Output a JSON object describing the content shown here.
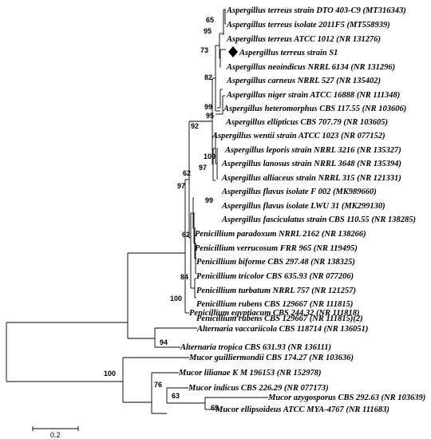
{
  "tree": {
    "taxa": [
      "Aspergillus terreus strain DTO 403-C9 (MT316343)",
      "Aspergillus terreus isolate 2011F5 (MT558939)",
      "Aspergillus terreus ATCC 1012 (NR 131276)",
      "Aspergillus terreus strain S1",
      "Aspergillus neoindicus NRRL 6134 (NR 131296)",
      "Aspergillus carneus NRRL 527 (NR 135402)",
      "Aspergillus niger strain ATCC 16888 (NR 111348)",
      "Aspergillus heteromorphus CBS 117.55 (NR 103606)",
      "Aspergillus ellipticus CBS 707.79 (NR 103605)",
      "Aspergillus wentii strain ATCC 1023 (NR 077152)",
      "Aspergillus leporis strain NRRL 3216 (NR 135327)",
      "Aspergillus lanosus strain NRRL 3648 (NR 135394)",
      "Aspergillus alliaceus strain NRRL 315 (NR 121331)",
      "Aspergillus flavus isolate F 002 (MK989660)",
      "Aspergillus flavus isolate LWU 31 (MK299130)",
      "Aspergillus fasciculatus strain CBS 110.55 (NR 138285)",
      "Penicillium paradoxum NRRL 2162 (NR 138266)",
      "Penicillium verrucosum FRR 965 (NR 119495)",
      "Penicillium biforme CBS 297.48 (NR 138325)",
      "Penicillium tricolor CBS 635.93 (NR 077206)",
      "Penicillium turbatum NRRL 757 (NR 121257)",
      "Penicillium rubens CBS 129667 (NR 111815)",
      "Penicillium rubens CBS 129667 (NR 111815)(2)",
      "Penicillium egyptiacum CBS 244.32 (NR 111818)",
      "Alternaria vaccariicola CBS 118714 (NR 136051)",
      "Alternaria tropica CBS 631.93 (NR 136111)",
      "Mucor guilliermondii CBS 174.27 (NR 103636)",
      "Mucor lilianae K M 196153 (NR 152978)",
      "Mucor indicus CBS 226.29 (NR 077173)",
      "Mucor azygosporus CBS 292.63 (NR 103639)",
      "Mucor ellipsoideus ATCC MYA-4767 (NR 111683)"
    ],
    "bootstrap": [
      "65",
      "95",
      "73",
      "82",
      "99",
      "95",
      "92",
      "100",
      "97",
      "99",
      "62",
      "97",
      "62",
      "84",
      "100",
      "94",
      "100",
      "76",
      "63",
      "69"
    ],
    "scale_bar_label": "0.2",
    "highlight_marker": "diamond"
  }
}
